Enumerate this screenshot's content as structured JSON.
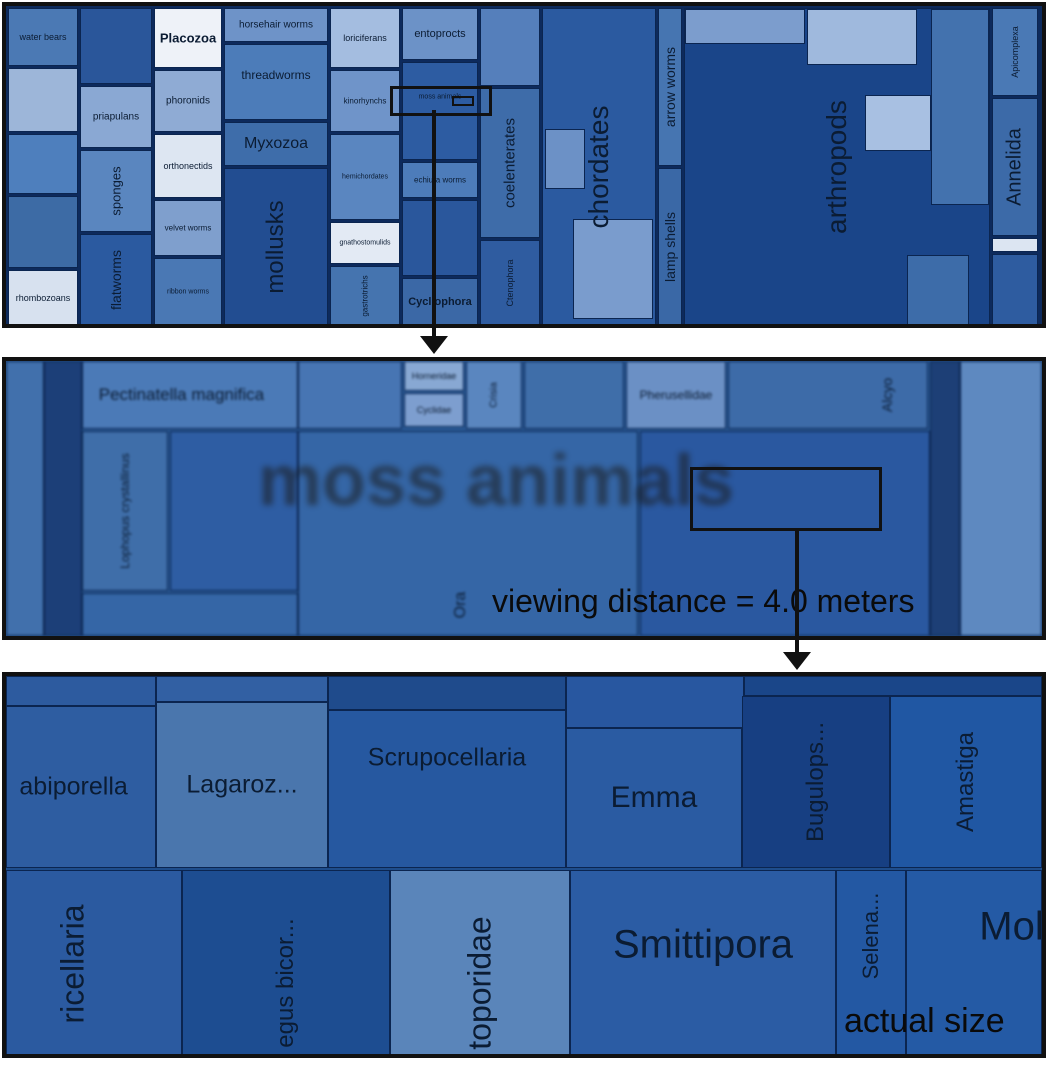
{
  "overview": {
    "labels": {
      "water_bears": "water bears",
      "placozoa": "Placozoa",
      "horsehair_worms": "horsehair worms",
      "loriciferans": "loriciferans",
      "entoprocts": "entoprocts",
      "priapulans": "priapulans",
      "phoronids": "phoronids",
      "threadworms": "threadworms",
      "kinorhynchs": "kinorhynchs",
      "moss_animals_small": "moss animals",
      "orthonectids": "orthonectids",
      "myxozoa": "Myxozoa",
      "sponges": "sponges",
      "mollusks": "mollusks",
      "velvet_worms": "velvet worms",
      "gnathostomulids": "gnathostomulids",
      "echiura_worms": "echiura worms",
      "coelenterates": "coelenterates",
      "chordates": "chordates",
      "arrow_worms": "arrow worms",
      "lamp_shells": "lamp shells",
      "arthropods": "arthropods",
      "apicomplexa": "Apicomplexa",
      "annelida": "Annelida",
      "rhombozoans": "rhombozoans",
      "flatworms": "flatworms",
      "ribbon_worms": "ribbon worms",
      "gastrotrichs": "gastrotrichs",
      "cycliophora": "Cycliophora",
      "ctenophora": "Ctenophora",
      "hemichordates": "hemichordates"
    }
  },
  "mid": {
    "big_label": "moss animals",
    "labels": {
      "pectinatella": "Pectinatella magnifica",
      "lophopus": "Lophopus crystallinus",
      "pherusellidae": "Pherusellidae",
      "hornerida": "Horneridae",
      "cyclidae": "Cyclidae",
      "crisia": "Crisia",
      "alcyonidium": "Alcyo",
      "ora": "Ora"
    },
    "caption": "viewing distance = 4.0 meters"
  },
  "detail": {
    "labels": {
      "scrupocellaria": "Scrupocellaria",
      "lagaroz": "Lagaroz...",
      "abiporella": "abiporella",
      "emma": "Emma",
      "bugulops": "Bugulops...",
      "amastiga": "Amastiga",
      "ricellaria": "ricellaria",
      "egus_bicor": "egus bicor...",
      "toporidae": "toporidae",
      "smittipora": "Smittipora",
      "selena": "Selena...",
      "mol": "Mol"
    },
    "caption": "actual size"
  },
  "colors": {
    "light": "#d8e3f1",
    "pale": "#a9c0e0",
    "mid": "#5d88bf",
    "base": "#3e6ea8",
    "deep": "#1f4c8b",
    "dark": "#0f2c63"
  }
}
